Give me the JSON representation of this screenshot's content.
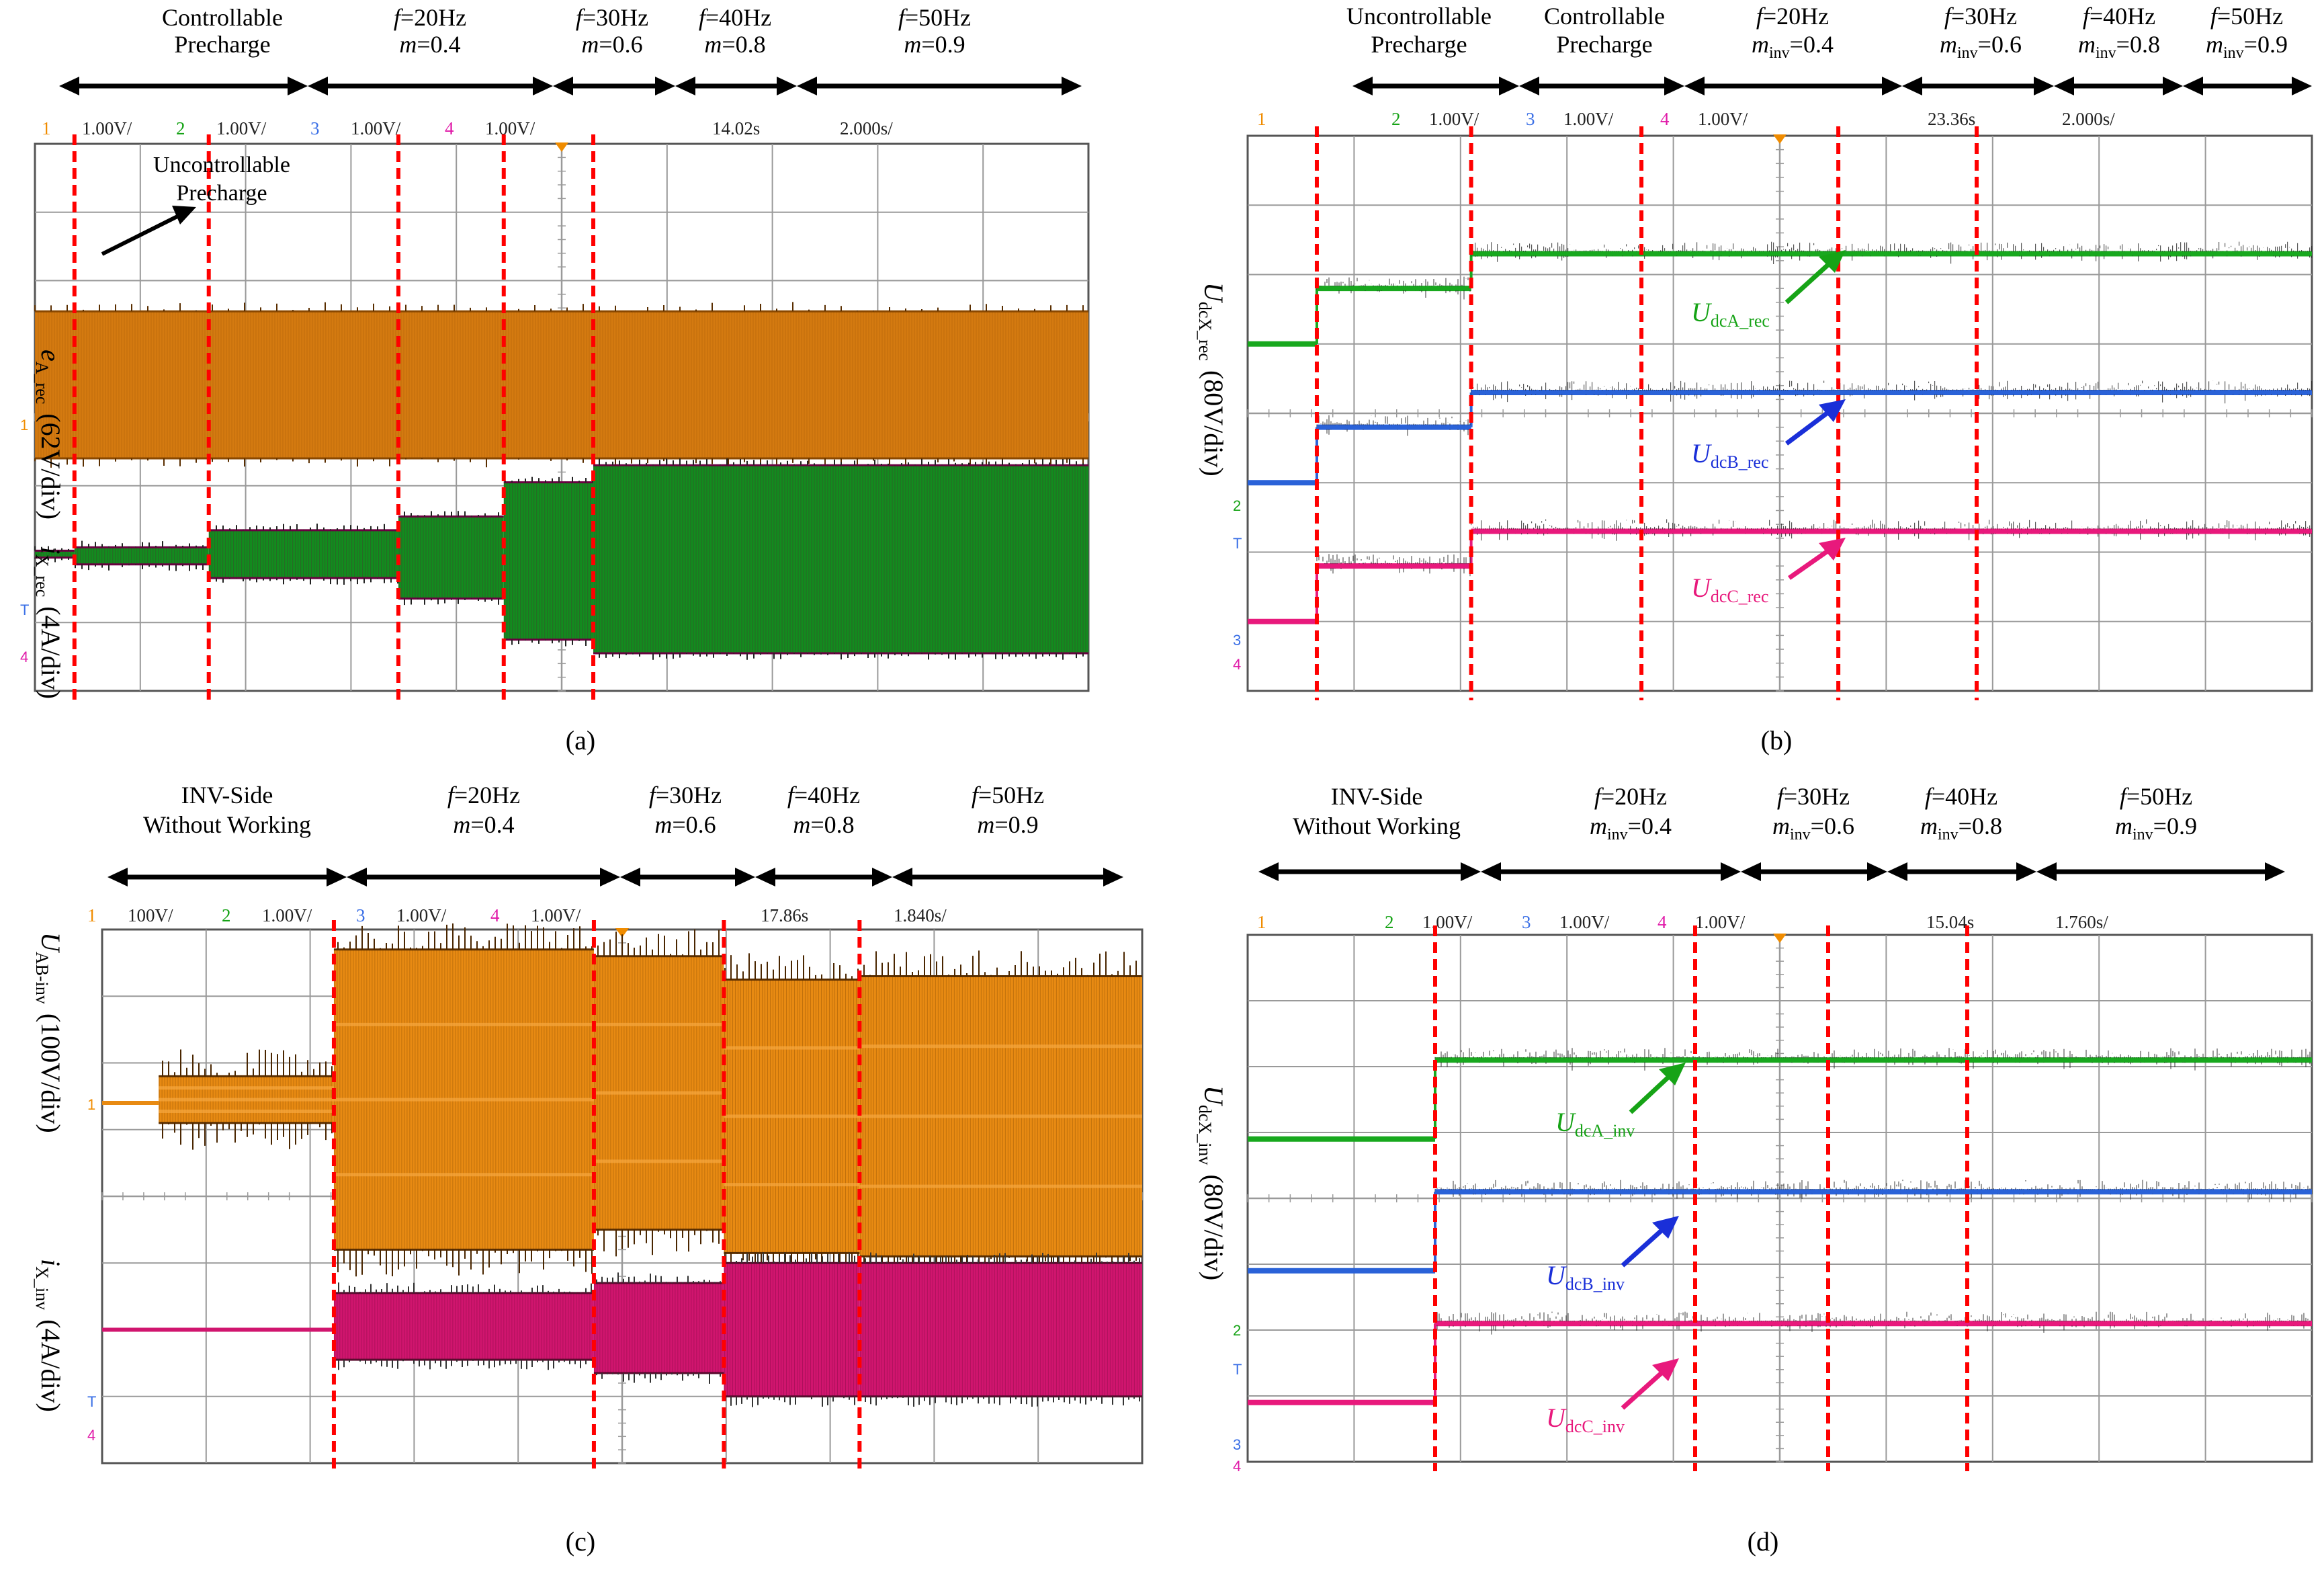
{
  "colors": {
    "orange": "#f08c00",
    "orange_dark": "#5a2e00",
    "green": "#0a8a16",
    "green_bright": "#13b01f",
    "blue": "#2a6de0",
    "magenta": "#e8197c",
    "red_dash": "#ff0000",
    "grid": "#9a9a9a",
    "ch1": "#f08c00",
    "ch2": "#16a316",
    "ch3": "#3a6fe6",
    "ch4": "#e01aa8"
  },
  "panels": [
    {
      "id": "a",
      "caption": "(a)",
      "segments": [
        {
          "label1": "Controllable",
          "label2": "Precharge"
        },
        {
          "label1": "f=20Hz",
          "label2": "m=0.4"
        },
        {
          "label1": "f=30Hz",
          "label2": "m=0.6"
        },
        {
          "label1": "f=40Hz",
          "label2": "m=0.8"
        },
        {
          "label1": "f=50Hz",
          "label2": "m=0.9"
        }
      ],
      "status": {
        "c1": "1",
        "v1": "1.00V/",
        "c2": "2",
        "v2": "1.00V/",
        "c3": "3",
        "v3": "1.00V/",
        "c4": "4",
        "v4": "1.00V/",
        "time": "14.02s",
        "div": "2.000s/"
      },
      "ylabels": [
        {
          "main": "e",
          "sub": "A_rec",
          "scale": "(62V/div)"
        },
        {
          "main": "i",
          "sub": "X_rec",
          "scale": "(4A/div)"
        }
      ],
      "annotation": {
        "line1": "Uncontrollable",
        "line2": "Precharge"
      }
    },
    {
      "id": "b",
      "caption": "(b)",
      "segments": [
        {
          "label1": "Uncontrollable",
          "label2": "Precharge"
        },
        {
          "label1": "Controllable",
          "label2": "Precharge"
        },
        {
          "label1": "f=20Hz",
          "label2": "minv=0.4"
        },
        {
          "label1": "f=30Hz",
          "label2": "minv=0.6"
        },
        {
          "label1": "f=40Hz",
          "label2": "minv=0.8"
        },
        {
          "label1": "f=50Hz",
          "label2": "minv=0.9"
        }
      ],
      "status": {
        "c1": "1",
        "v1": "",
        "c2": "2",
        "v2": "1.00V/",
        "c3": "3",
        "v3": "1.00V/",
        "c4": "4",
        "v4": "1.00V/",
        "time": "23.36s",
        "div": "2.000s/"
      },
      "ylabels": [
        {
          "main": "U",
          "sub": "dcX_rec",
          "scale": "(80V/div)"
        }
      ],
      "traces": [
        {
          "main": "U",
          "sub": "dcA_rec"
        },
        {
          "main": "U",
          "sub": "dcB_rec"
        },
        {
          "main": "U",
          "sub": "dcC_rec"
        }
      ]
    },
    {
      "id": "c",
      "caption": "(c)",
      "segments": [
        {
          "label1": "INV-Side",
          "label2": "Without Working"
        },
        {
          "label1": "f=20Hz",
          "label2": "m=0.4"
        },
        {
          "label1": "f=30Hz",
          "label2": "m=0.6"
        },
        {
          "label1": "f=40Hz",
          "label2": "m=0.8"
        },
        {
          "label1": "f=50Hz",
          "label2": "m=0.9"
        }
      ],
      "status": {
        "c1": "1",
        "v1": "100V/",
        "c2": "2",
        "v2": "1.00V/",
        "c3": "3",
        "v3": "1.00V/",
        "c4": "4",
        "v4": "1.00V/",
        "time": "17.86s",
        "div": "1.840s/"
      },
      "ylabels": [
        {
          "main": "U",
          "sub": "AB-inv",
          "scale": "(100V/div)"
        },
        {
          "main": "i",
          "sub": "X_inv",
          "scale": "(4A/div)"
        }
      ]
    },
    {
      "id": "d",
      "caption": "(d)",
      "segments": [
        {
          "label1": "INV-Side",
          "label2": "Without Working"
        },
        {
          "label1": "f=20Hz",
          "label2": "minv=0.4"
        },
        {
          "label1": "f=30Hz",
          "label2": "minv=0.6"
        },
        {
          "label1": "f=40Hz",
          "label2": "minv=0.8"
        },
        {
          "label1": "f=50Hz",
          "label2": "minv=0.9"
        }
      ],
      "status": {
        "c1": "1",
        "v1": "",
        "c2": "2",
        "v2": "1.00V/",
        "c3": "3",
        "v3": "1.00V/",
        "c4": "4",
        "v4": "1.00V/",
        "time": "15.04s",
        "div": "1.760s/"
      },
      "ylabels": [
        {
          "main": "U",
          "sub": "dcX_inv",
          "scale": "(80V/div)"
        }
      ],
      "traces": [
        {
          "main": "U",
          "sub": "dcA_inv"
        },
        {
          "main": "U",
          "sub": "dcB_inv"
        },
        {
          "main": "U",
          "sub": "dcC_inv"
        }
      ]
    }
  ],
  "chart_data": [
    {
      "type": "line",
      "panel": "a",
      "x_unit": "s",
      "x_div": 2.0,
      "x_range": [
        0,
        20
      ],
      "y_unit": "div",
      "y_range": [
        0,
        8
      ],
      "stage_boundaries_s": [
        0.75,
        3.3,
        6.9,
        8.9,
        10.6
      ],
      "series": [
        {
          "name": "e_A_rec",
          "scale": "62V/div",
          "envelope_div": [
            [
              0.0,
              3.4,
              5.55
            ],
            [
              20.0,
              3.4,
              5.55
            ]
          ]
        },
        {
          "name": "i_X_rec",
          "scale": "4A/div",
          "envelope_div": [
            [
              0.0,
              1.95,
              2.05
            ],
            [
              0.75,
              1.85,
              2.1
            ],
            [
              3.3,
              1.65,
              2.35
            ],
            [
              6.9,
              1.35,
              2.55
            ],
            [
              8.9,
              0.75,
              3.05
            ],
            [
              10.6,
              0.55,
              3.3
            ],
            [
              20.0,
              0.55,
              3.3
            ]
          ]
        }
      ]
    },
    {
      "type": "line",
      "panel": "b",
      "x_unit": "s",
      "x_div": 2.0,
      "x_range": [
        0,
        20
      ],
      "y_unit": "div",
      "y_range": [
        0,
        8
      ],
      "stage_boundaries_s": [
        1.3,
        4.2,
        7.4,
        11.1,
        13.7
      ],
      "series": [
        {
          "name": "U_dcA_rec",
          "scale": "80V/div",
          "steps_div": [
            [
              0,
              5.0
            ],
            [
              1.3,
              5.8
            ],
            [
              4.2,
              6.3
            ],
            [
              20,
              6.3
            ]
          ]
        },
        {
          "name": "U_dcB_rec",
          "scale": "80V/div",
          "steps_div": [
            [
              0,
              3.0
            ],
            [
              1.3,
              3.8
            ],
            [
              4.2,
              4.3
            ],
            [
              20,
              4.3
            ]
          ]
        },
        {
          "name": "U_dcC_rec",
          "scale": "80V/div",
          "steps_div": [
            [
              0,
              1.0
            ],
            [
              1.3,
              1.8
            ],
            [
              4.2,
              2.3
            ],
            [
              20,
              2.3
            ]
          ]
        }
      ]
    },
    {
      "type": "line",
      "panel": "c",
      "x_unit": "s",
      "x_div": 1.84,
      "x_range": [
        0,
        18.4
      ],
      "y_unit": "div",
      "y_range": [
        0,
        8
      ],
      "stage_boundaries_s": [
        4.1,
        8.7,
        11.0,
        13.4
      ],
      "series": [
        {
          "name": "U_AB-inv",
          "scale": "100V/div",
          "envelope_div": [
            [
              0.0,
              5.4,
              5.4
            ],
            [
              1.0,
              5.1,
              5.8
            ],
            [
              4.1,
              3.2,
              7.7
            ],
            [
              8.7,
              3.5,
              7.6
            ],
            [
              11.0,
              3.15,
              7.25
            ],
            [
              13.4,
              3.1,
              7.3
            ],
            [
              18.4,
              3.1,
              7.3
            ]
          ]
        },
        {
          "name": "i_X_inv",
          "scale": "4A/div",
          "envelope_div": [
            [
              0.0,
              2.0,
              2.0
            ],
            [
              4.1,
              1.55,
              2.55
            ],
            [
              8.7,
              1.35,
              2.7
            ],
            [
              11.0,
              1.0,
              3.0
            ],
            [
              13.4,
              1.0,
              3.0
            ],
            [
              18.4,
              1.0,
              3.0
            ]
          ]
        }
      ]
    },
    {
      "type": "line",
      "panel": "d",
      "x_unit": "s",
      "x_div": 1.76,
      "x_range": [
        0,
        17.6
      ],
      "y_unit": "div",
      "y_range": [
        0,
        8
      ],
      "stage_boundaries_s": [
        3.1,
        7.4,
        9.6,
        11.9
      ],
      "series": [
        {
          "name": "U_dcA_inv",
          "scale": "80V/div",
          "steps_div": [
            [
              0,
              4.9
            ],
            [
              3.1,
              6.1
            ],
            [
              17.6,
              6.1
            ]
          ]
        },
        {
          "name": "U_dcB_inv",
          "scale": "80V/div",
          "steps_div": [
            [
              0,
              2.9
            ],
            [
              3.1,
              4.1
            ],
            [
              17.6,
              4.1
            ]
          ]
        },
        {
          "name": "U_dcC_inv",
          "scale": "80V/div",
          "steps_div": [
            [
              0,
              0.9
            ],
            [
              3.1,
              2.1
            ],
            [
              17.6,
              2.1
            ]
          ]
        }
      ]
    }
  ]
}
